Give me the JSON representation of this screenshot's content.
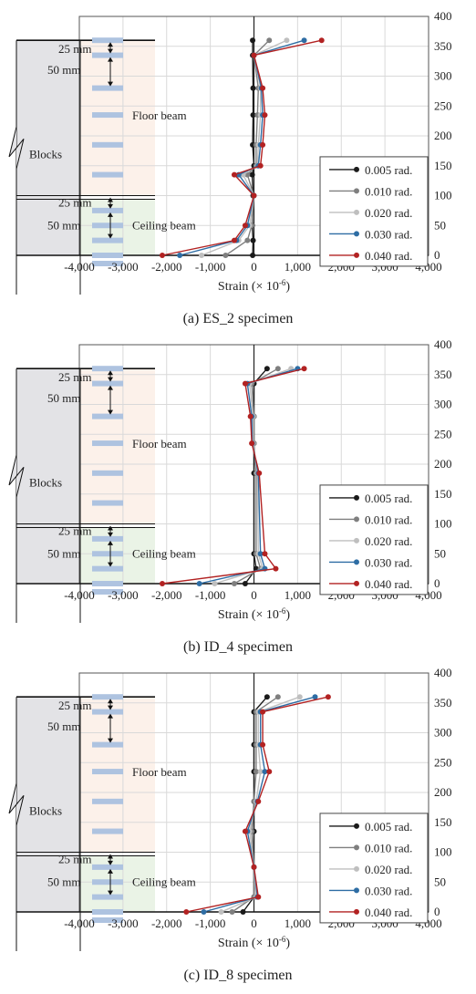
{
  "common": {
    "xlabel": "Strain (× 10",
    "xlabel_exp": "-6",
    "xlabel_close": ")",
    "xticks": [
      "-4,000",
      "-3,000",
      "-2,000",
      "-1,000",
      "0",
      "1,000",
      "2,000",
      "3,000",
      "4,000"
    ],
    "yticks": [
      "0",
      "50",
      "100",
      "150",
      "200",
      "250",
      "300",
      "350",
      "400"
    ],
    "drawing": {
      "blocks": "Blocks",
      "floor_beam": "Floor beam",
      "ceiling_beam": "Ceiling beam",
      "dim_top_25": "25 mm",
      "dim_top_50": "50 mm",
      "dim_bot_25": "25 mm",
      "dim_bot_50": "50 mm"
    },
    "colors": {
      "0.005 rad.": "#1a1a1a",
      "0.010 rad.": "#7f7f7f",
      "0.020 rad.": "#bfbfbf",
      "0.030 rad.": "#2e6da4",
      "0.040 rad.": "#b22222",
      "grid": "#d9d9d9",
      "wall": "#e3e3e6",
      "floor_tint": "#fcf1ea",
      "ceiling_tint": "#eaf3e6",
      "gauge": "#aec3e0"
    }
  },
  "chart_data": [
    {
      "type": "line",
      "caption": "(a) ES_2 specimen",
      "xlim": [
        -4000,
        4000
      ],
      "ylim": [
        0,
        400
      ],
      "xlabel": "Strain (× 10-6)",
      "grid": true,
      "legend_position": "bottom-right",
      "series": [
        {
          "name": "0.005 rad.",
          "points": [
            [
              -30,
              0
            ],
            [
              -20,
              25
            ],
            [
              -40,
              50
            ],
            [
              -20,
              100
            ],
            [
              -40,
              135
            ],
            [
              0,
              150
            ],
            [
              -30,
              185
            ],
            [
              -20,
              235
            ],
            [
              -20,
              280
            ],
            [
              -30,
              335
            ],
            [
              -30,
              360
            ]
          ]
        },
        {
          "name": "0.010 rad.",
          "points": [
            [
              -650,
              0
            ],
            [
              -150,
              25
            ],
            [
              -50,
              50
            ],
            [
              0,
              100
            ],
            [
              -150,
              135
            ],
            [
              50,
              150
            ],
            [
              50,
              185
            ],
            [
              80,
              235
            ],
            [
              100,
              280
            ],
            [
              0,
              335
            ],
            [
              350,
              360
            ]
          ]
        },
        {
          "name": "0.020 rad.",
          "points": [
            [
              -1200,
              0
            ],
            [
              -350,
              25
            ],
            [
              -100,
              50
            ],
            [
              0,
              100
            ],
            [
              -250,
              135
            ],
            [
              80,
              150
            ],
            [
              100,
              185
            ],
            [
              150,
              235
            ],
            [
              150,
              280
            ],
            [
              0,
              335
            ],
            [
              750,
              360
            ]
          ]
        },
        {
          "name": "0.030 rad.",
          "points": [
            [
              -1700,
              0
            ],
            [
              -400,
              25
            ],
            [
              -150,
              50
            ],
            [
              0,
              100
            ],
            [
              -350,
              135
            ],
            [
              100,
              150
            ],
            [
              150,
              185
            ],
            [
              200,
              235
            ],
            [
              170,
              280
            ],
            [
              0,
              335
            ],
            [
              1150,
              360
            ]
          ]
        },
        {
          "name": "0.040 rad.",
          "points": [
            [
              -2100,
              0
            ],
            [
              -450,
              25
            ],
            [
              -200,
              50
            ],
            [
              0,
              100
            ],
            [
              -450,
              135
            ],
            [
              150,
              150
            ],
            [
              200,
              185
            ],
            [
              250,
              235
            ],
            [
              200,
              280
            ],
            [
              0,
              335
            ],
            [
              1550,
              360
            ]
          ]
        }
      ]
    },
    {
      "type": "line",
      "caption": "(b) ID_4 specimen",
      "xlim": [
        -4000,
        4000
      ],
      "ylim": [
        0,
        400
      ],
      "xlabel": "Strain (× 10-6)",
      "grid": true,
      "legend_position": "bottom-right",
      "series": [
        {
          "name": "0.005 rad.",
          "points": [
            [
              -200,
              0
            ],
            [
              50,
              25
            ],
            [
              0,
              50
            ],
            [
              0,
              185
            ],
            [
              0,
              235
            ],
            [
              0,
              280
            ],
            [
              0,
              335
            ],
            [
              300,
              360
            ]
          ]
        },
        {
          "name": "0.010 rad.",
          "points": [
            [
              -450,
              0
            ],
            [
              150,
              25
            ],
            [
              50,
              50
            ],
            [
              50,
              185
            ],
            [
              0,
              235
            ],
            [
              0,
              280
            ],
            [
              -50,
              335
            ],
            [
              550,
              360
            ]
          ]
        },
        {
          "name": "0.020 rad.",
          "points": [
            [
              -900,
              0
            ],
            [
              200,
              25
            ],
            [
              100,
              50
            ],
            [
              80,
              185
            ],
            [
              -20,
              235
            ],
            [
              -20,
              280
            ],
            [
              -100,
              335
            ],
            [
              850,
              360
            ]
          ]
        },
        {
          "name": "0.030 rad.",
          "points": [
            [
              -1250,
              0
            ],
            [
              250,
              25
            ],
            [
              150,
              50
            ],
            [
              100,
              185
            ],
            [
              -40,
              235
            ],
            [
              -50,
              280
            ],
            [
              -150,
              335
            ],
            [
              1000,
              360
            ]
          ]
        },
        {
          "name": "0.040 rad.",
          "points": [
            [
              -2100,
              0
            ],
            [
              500,
              25
            ],
            [
              250,
              50
            ],
            [
              120,
              185
            ],
            [
              -50,
              235
            ],
            [
              -80,
              280
            ],
            [
              -200,
              335
            ],
            [
              1150,
              360
            ]
          ]
        }
      ]
    },
    {
      "type": "line",
      "caption": "(c) ID_8 specimen",
      "xlim": [
        -4000,
        4000
      ],
      "ylim": [
        0,
        400
      ],
      "xlabel": "Strain (× 10-6)",
      "grid": true,
      "legend_position": "bottom-right",
      "series": [
        {
          "name": "0.005 rad.",
          "points": [
            [
              -250,
              0
            ],
            [
              0,
              25
            ],
            [
              0,
              75
            ],
            [
              0,
              135
            ],
            [
              0,
              185
            ],
            [
              0,
              235
            ],
            [
              0,
              280
            ],
            [
              0,
              335
            ],
            [
              300,
              360
            ]
          ]
        },
        {
          "name": "0.010 rad.",
          "points": [
            [
              -500,
              0
            ],
            [
              0,
              25
            ],
            [
              0,
              75
            ],
            [
              -50,
              135
            ],
            [
              0,
              185
            ],
            [
              50,
              235
            ],
            [
              50,
              280
            ],
            [
              50,
              335
            ],
            [
              550,
              360
            ]
          ]
        },
        {
          "name": "0.020 rad.",
          "points": [
            [
              -750,
              0
            ],
            [
              50,
              25
            ],
            [
              0,
              75
            ],
            [
              -100,
              135
            ],
            [
              50,
              185
            ],
            [
              150,
              235
            ],
            [
              100,
              280
            ],
            [
              100,
              335
            ],
            [
              1050,
              360
            ]
          ]
        },
        {
          "name": "0.030 rad.",
          "points": [
            [
              -1150,
              0
            ],
            [
              80,
              25
            ],
            [
              0,
              75
            ],
            [
              -150,
              135
            ],
            [
              80,
              185
            ],
            [
              250,
              235
            ],
            [
              150,
              280
            ],
            [
              150,
              335
            ],
            [
              1400,
              360
            ]
          ]
        },
        {
          "name": "0.040 rad.",
          "points": [
            [
              -1550,
              0
            ],
            [
              100,
              25
            ],
            [
              0,
              75
            ],
            [
              -200,
              135
            ],
            [
              100,
              185
            ],
            [
              350,
              235
            ],
            [
              200,
              280
            ],
            [
              200,
              335
            ],
            [
              1700,
              360
            ]
          ]
        }
      ]
    }
  ]
}
